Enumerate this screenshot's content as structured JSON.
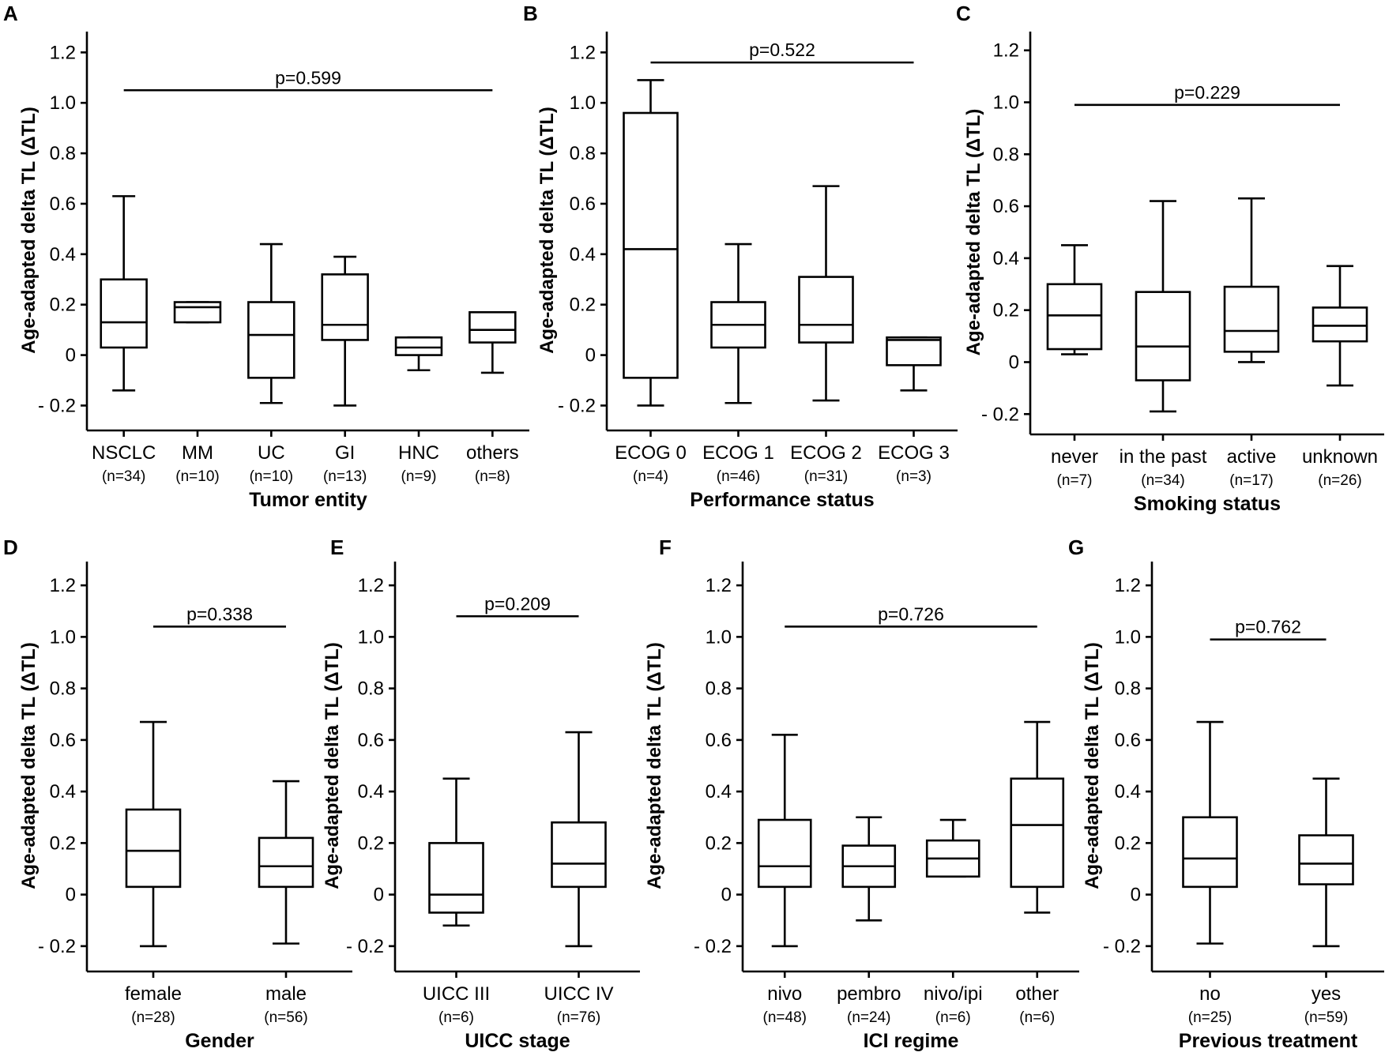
{
  "chart_data": [
    {
      "type": "box",
      "panel": "A",
      "title": "",
      "xlabel": "Tumor entity",
      "ylabel": "Age-adapted delta TL (ΔTL)",
      "ylim": [
        -0.28,
        1.27
      ],
      "yticks": [
        -0.2,
        0,
        0.2,
        0.4,
        0.6,
        0.8,
        1.0,
        1.2
      ],
      "ytick_labels": [
        "- 0.2",
        "0",
        "0.2",
        "0.4",
        "0.6",
        "0.8",
        "1.0",
        "1.2"
      ],
      "categories": [
        "NSCLC",
        "MM",
        "UC",
        "GI",
        "HNC",
        "others"
      ],
      "n_labels": [
        "(n=34)",
        "(n=10)",
        "(n=10)",
        "(n=13)",
        "(n=9)",
        "(n=8)"
      ],
      "boxes": [
        {
          "min": -0.14,
          "q1": 0.03,
          "median": 0.13,
          "q3": 0.3,
          "max": 0.63
        },
        {
          "min": 0.13,
          "q1": 0.13,
          "median": 0.19,
          "q3": 0.21,
          "max": 0.21
        },
        {
          "min": -0.19,
          "q1": -0.09,
          "median": 0.08,
          "q3": 0.21,
          "max": 0.44
        },
        {
          "min": -0.2,
          "q1": 0.06,
          "median": 0.12,
          "q3": 0.32,
          "max": 0.39
        },
        {
          "min": -0.06,
          "q1": 0.0,
          "median": 0.03,
          "q3": 0.07,
          "max": 0.07
        },
        {
          "min": -0.07,
          "q1": 0.05,
          "median": 0.1,
          "q3": 0.17,
          "max": 0.17
        }
      ],
      "p_value": "p=0.599",
      "p_line_y": 1.05,
      "p_span": [
        0,
        5
      ]
    },
    {
      "type": "box",
      "panel": "B",
      "title": "",
      "xlabel": "Performance status",
      "ylabel": "Age-adapted delta TL (ΔTL)",
      "ylim": [
        -0.28,
        1.27
      ],
      "yticks": [
        -0.2,
        0,
        0.2,
        0.4,
        0.6,
        0.8,
        1.0,
        1.2
      ],
      "ytick_labels": [
        "- 0.2",
        "0",
        "0.2",
        "0.4",
        "0.6",
        "0.8",
        "1.0",
        "1.2"
      ],
      "categories": [
        "ECOG 0",
        "ECOG 1",
        "ECOG 2",
        "ECOG 3"
      ],
      "n_labels": [
        "(n=4)",
        "(n=46)",
        "(n=31)",
        "(n=3)"
      ],
      "boxes": [
        {
          "min": -0.2,
          "q1": -0.09,
          "median": 0.42,
          "q3": 0.96,
          "max": 1.09
        },
        {
          "min": -0.19,
          "q1": 0.03,
          "median": 0.12,
          "q3": 0.21,
          "max": 0.44
        },
        {
          "min": -0.18,
          "q1": 0.05,
          "median": 0.12,
          "q3": 0.31,
          "max": 0.67
        },
        {
          "min": -0.14,
          "q1": -0.04,
          "median": 0.06,
          "q3": 0.07,
          "max": 0.07
        }
      ],
      "p_value": "p=0.522",
      "p_line_y": 1.16,
      "p_span": [
        0,
        3
      ]
    },
    {
      "type": "box",
      "panel": "C",
      "title": "",
      "xlabel": "Smoking status",
      "ylabel": "Age-adapted delta TL (ΔTL)",
      "ylim": [
        -0.26,
        1.26
      ],
      "yticks": [
        -0.2,
        0,
        0.2,
        0.4,
        0.6,
        0.8,
        1.0,
        1.2
      ],
      "ytick_labels": [
        "- 0.2",
        "0",
        "0.2",
        "0.4",
        "0.6",
        "0.8",
        "1.0",
        "1.2"
      ],
      "categories": [
        "never",
        "in the past",
        "active",
        "unknown"
      ],
      "n_labels": [
        "(n=7)",
        "(n=34)",
        "(n=17)",
        "(n=26)"
      ],
      "boxes": [
        {
          "min": 0.03,
          "q1": 0.05,
          "median": 0.18,
          "q3": 0.3,
          "max": 0.45
        },
        {
          "min": -0.19,
          "q1": -0.07,
          "median": 0.06,
          "q3": 0.27,
          "max": 0.62
        },
        {
          "min": 0.0,
          "q1": 0.04,
          "median": 0.12,
          "q3": 0.29,
          "max": 0.63
        },
        {
          "min": -0.09,
          "q1": 0.08,
          "median": 0.14,
          "q3": 0.21,
          "max": 0.37
        }
      ],
      "p_value": "p=0.229",
      "p_line_y": 0.99,
      "p_span": [
        0,
        3
      ]
    },
    {
      "type": "box",
      "panel": "D",
      "title": "",
      "xlabel": "Gender",
      "ylabel": "Age-adapted delta TL (ΔTL)",
      "ylim": [
        -0.28,
        1.28
      ],
      "yticks": [
        -0.2,
        0,
        0.2,
        0.4,
        0.6,
        0.8,
        1.0,
        1.2
      ],
      "ytick_labels": [
        "- 0.2",
        "0",
        "0.2",
        "0.4",
        "0.6",
        "0.8",
        "1.0",
        "1.2"
      ],
      "categories": [
        "female",
        "male"
      ],
      "n_labels": [
        "(n=28)",
        "(n=56)"
      ],
      "boxes": [
        {
          "min": -0.2,
          "q1": 0.03,
          "median": 0.17,
          "q3": 0.33,
          "max": 0.67
        },
        {
          "min": -0.19,
          "q1": 0.03,
          "median": 0.11,
          "q3": 0.22,
          "max": 0.44
        }
      ],
      "p_value": "p=0.338",
      "p_line_y": 1.04,
      "p_span": [
        0,
        1
      ]
    },
    {
      "type": "box",
      "panel": "E",
      "title": "",
      "xlabel": "UICC stage",
      "ylabel": "Age-adapted delta TL (ΔTL)",
      "ylim": [
        -0.28,
        1.28
      ],
      "yticks": [
        -0.2,
        0,
        0.2,
        0.4,
        0.6,
        0.8,
        1.0,
        1.2
      ],
      "ytick_labels": [
        "- 0.2",
        "0",
        "0.2",
        "0.4",
        "0.6",
        "0.8",
        "1.0",
        "1.2"
      ],
      "categories": [
        "UICC III",
        "UICC IV"
      ],
      "n_labels": [
        "(n=6)",
        "(n=76)"
      ],
      "boxes": [
        {
          "min": -0.12,
          "q1": -0.07,
          "median": 0.0,
          "q3": 0.2,
          "max": 0.45
        },
        {
          "min": -0.2,
          "q1": 0.03,
          "median": 0.12,
          "q3": 0.28,
          "max": 0.63
        }
      ],
      "p_value": "p=0.209",
      "p_line_y": 1.08,
      "p_span": [
        0,
        1
      ]
    },
    {
      "type": "box",
      "panel": "F",
      "title": "",
      "xlabel": "ICI regime",
      "ylabel": "Age-adapted delta TL (ΔTL)",
      "ylim": [
        -0.28,
        1.28
      ],
      "yticks": [
        -0.2,
        0,
        0.2,
        0.4,
        0.6,
        0.8,
        1.0,
        1.2
      ],
      "ytick_labels": [
        "- 0.2",
        "0",
        "0.2",
        "0.4",
        "0.6",
        "0.8",
        "1.0",
        "1.2"
      ],
      "categories": [
        "nivo",
        "pembro",
        "nivo/ipi",
        "other"
      ],
      "n_labels": [
        "(n=48)",
        "(n=24)",
        "(n=6)",
        "(n=6)"
      ],
      "boxes": [
        {
          "min": -0.2,
          "q1": 0.03,
          "median": 0.11,
          "q3": 0.29,
          "max": 0.62
        },
        {
          "min": -0.1,
          "q1": 0.03,
          "median": 0.11,
          "q3": 0.19,
          "max": 0.3
        },
        {
          "min": 0.07,
          "q1": 0.07,
          "median": 0.14,
          "q3": 0.21,
          "max": 0.29
        },
        {
          "min": -0.07,
          "q1": 0.03,
          "median": 0.27,
          "q3": 0.45,
          "max": 0.67
        }
      ],
      "p_value": "p=0.726",
      "p_line_y": 1.04,
      "p_span": [
        0,
        3
      ]
    },
    {
      "type": "box",
      "panel": "G",
      "title": "",
      "xlabel": "Previous treatment",
      "ylabel": "Age-adapted delta TL (ΔTL)",
      "ylim": [
        -0.28,
        1.28
      ],
      "yticks": [
        -0.2,
        0,
        0.2,
        0.4,
        0.6,
        0.8,
        1.0,
        1.2
      ],
      "ytick_labels": [
        "- 0.2",
        "0",
        "0.2",
        "0.4",
        "0.6",
        "0.8",
        "1.0",
        "1.2"
      ],
      "categories": [
        "no",
        "yes"
      ],
      "n_labels": [
        "(n=25)",
        "(n=59)"
      ],
      "boxes": [
        {
          "min": -0.19,
          "q1": 0.03,
          "median": 0.14,
          "q3": 0.3,
          "max": 0.67
        },
        {
          "min": -0.2,
          "q1": 0.04,
          "median": 0.12,
          "q3": 0.23,
          "max": 0.45
        }
      ],
      "p_value": "p=0.762",
      "p_line_y": 0.99,
      "p_span": [
        0,
        1
      ]
    }
  ]
}
